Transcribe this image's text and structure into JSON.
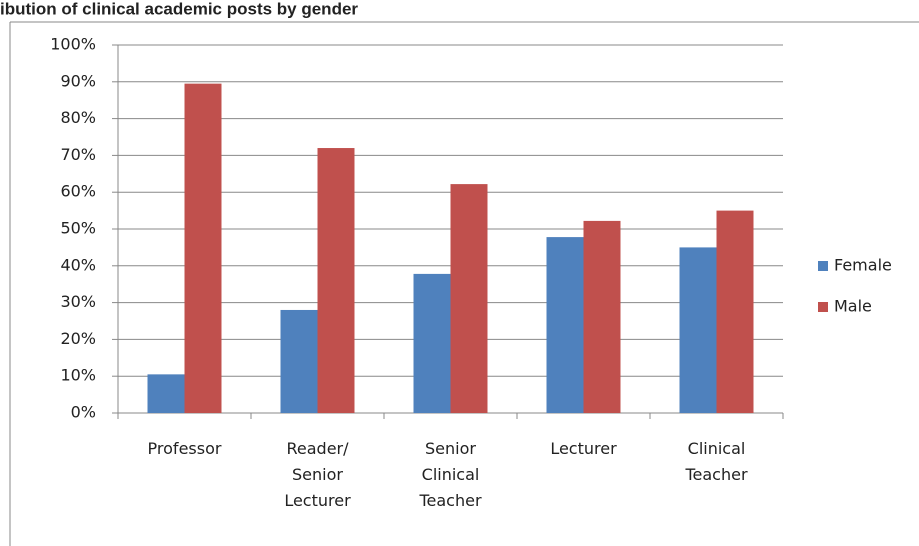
{
  "chart_data": {
    "type": "bar",
    "title": "ibution of clinical academic posts by gender",
    "categories": [
      "Professor",
      "Reader/ Senior Lecturer",
      "Senior Clinical Teacher",
      "Lecturer",
      "Clinical Teacher"
    ],
    "series": [
      {
        "name": "Female",
        "color": "#4f81bd",
        "values": [
          10.5,
          28,
          37.8,
          47.8,
          45
        ]
      },
      {
        "name": "Male",
        "color": "#c0504d",
        "values": [
          89.5,
          72,
          62.2,
          52.2,
          55
        ]
      }
    ],
    "ylim": [
      0,
      100
    ],
    "yticks": [
      {
        "value": 0,
        "label": "0%"
      },
      {
        "value": 10,
        "label": "10%"
      },
      {
        "value": 20,
        "label": "20%"
      },
      {
        "value": 30,
        "label": "30%"
      },
      {
        "value": 40,
        "label": "40%"
      },
      {
        "value": 50,
        "label": "50%"
      },
      {
        "value": 60,
        "label": "60%"
      },
      {
        "value": 70,
        "label": "70%"
      },
      {
        "value": 80,
        "label": "80%"
      },
      {
        "value": 90,
        "label": "90%"
      },
      {
        "value": 100,
        "label": "100%"
      }
    ],
    "grid": true,
    "legend": "right"
  }
}
